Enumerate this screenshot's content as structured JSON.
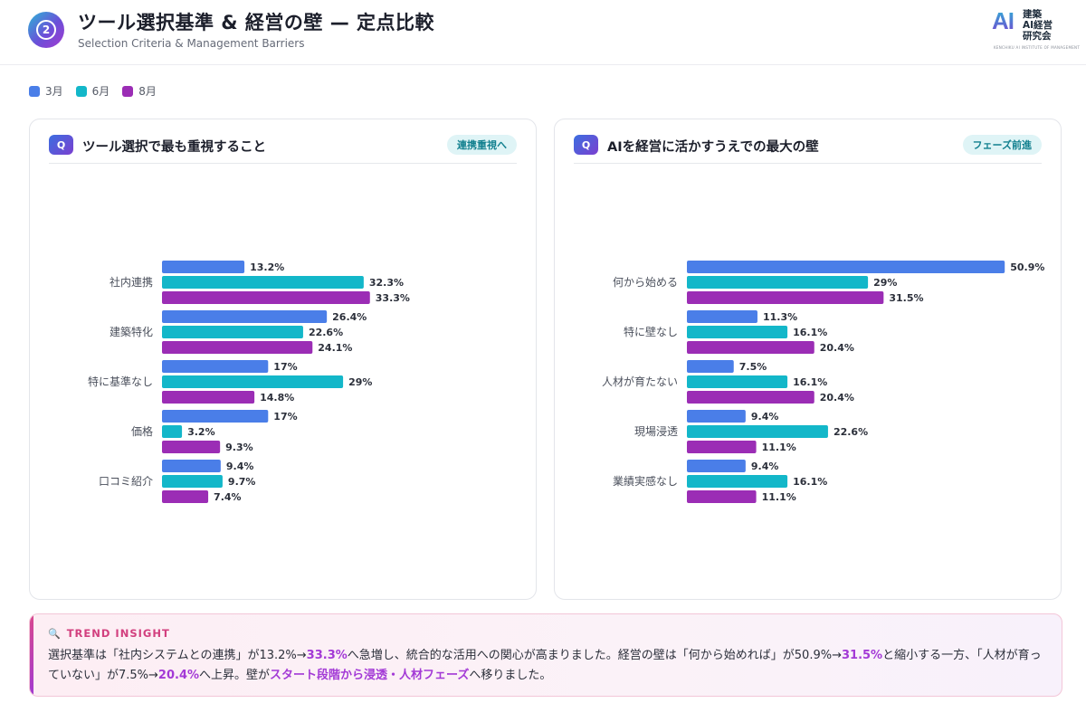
{
  "header": {
    "number": "2",
    "title": "ツール選択基準 & 経営の壁 — 定点比較",
    "subtitle": "Selection Criteria & Management Barriers",
    "logo_mark": "AI",
    "logo_text": "建築\nAI経営\n研究会",
    "logo_sub": "KENCHIKU AI INSTITUTE OF MANAGEMENT"
  },
  "legend": [
    {
      "label": "3月",
      "color": "#4a7ee8"
    },
    {
      "label": "6月",
      "color": "#13b7c9"
    },
    {
      "label": "8月",
      "color": "#9b2db5"
    }
  ],
  "cards": [
    {
      "q_icon": "Q",
      "title": "ツール選択で最も重視すること",
      "badge": "連携重視へ"
    },
    {
      "q_icon": "Q",
      "title": "AIを経営に活かすうえでの最大の壁",
      "badge": "フェーズ前進"
    }
  ],
  "chart_data": [
    {
      "type": "bar",
      "orientation": "horizontal",
      "title": "ツール選択で最も重視すること",
      "categories": [
        "社内連携",
        "建築特化",
        "特に基準なし",
        "価格",
        "口コミ紹介"
      ],
      "series": [
        {
          "name": "3月",
          "color": "#4a7ee8",
          "values": [
            13.2,
            26.4,
            17,
            17,
            9.4
          ],
          "labels": [
            "13.2%",
            "26.4%",
            "17%",
            "17%",
            "9.4%"
          ]
        },
        {
          "name": "6月",
          "color": "#13b7c9",
          "values": [
            32.3,
            22.6,
            29,
            3.2,
            9.7
          ],
          "labels": [
            "32.3%",
            "22.6%",
            "29%",
            "3.2%",
            "9.7%"
          ]
        },
        {
          "name": "8月",
          "color": "#9b2db5",
          "values": [
            33.3,
            24.1,
            14.8,
            9.3,
            7.4
          ],
          "labels": [
            "33.3%",
            "24.1%",
            "14.8%",
            "9.3%",
            "7.4%"
          ]
        }
      ],
      "xlim": [
        0,
        55
      ],
      "grid": false
    },
    {
      "type": "bar",
      "orientation": "horizontal",
      "title": "AIを経営に活かすうえでの最大の壁",
      "categories": [
        "何から始める",
        "特に壁なし",
        "人材が育たない",
        "現場浸透",
        "業績実感なし"
      ],
      "series": [
        {
          "name": "3月",
          "color": "#4a7ee8",
          "values": [
            50.9,
            11.3,
            7.5,
            9.4,
            9.4
          ],
          "labels": [
            "50.9%",
            "11.3%",
            "7.5%",
            "9.4%",
            "9.4%"
          ]
        },
        {
          "name": "6月",
          "color": "#13b7c9",
          "values": [
            29,
            16.1,
            16.1,
            22.6,
            16.1
          ],
          "labels": [
            "29%",
            "16.1%",
            "16.1%",
            "22.6%",
            "16.1%"
          ]
        },
        {
          "name": "8月",
          "color": "#9b2db5",
          "values": [
            31.5,
            20.4,
            20.4,
            11.1,
            11.1
          ],
          "labels": [
            "31.5%",
            "20.4%",
            "20.4%",
            "11.1%",
            "11.1%"
          ]
        }
      ],
      "xlim": [
        0,
        55
      ],
      "grid": false
    }
  ],
  "insight": {
    "icon": "magnifier-icon",
    "label": "TREND INSIGHT",
    "segments": [
      {
        "text": "選択基準は「社内システムとの連携」が13.2%→",
        "hl": false
      },
      {
        "text": "33.3%",
        "hl": true
      },
      {
        "text": "へ急増し、統合的な活用への関心が高まりました。経営の壁は「何から始めれば」が50.9%→",
        "hl": false
      },
      {
        "text": "31.5%",
        "hl": true
      },
      {
        "text": "と縮小する一方、「人材が育っていない」が7.5%→",
        "hl": false
      },
      {
        "text": "20.4%",
        "hl": true
      },
      {
        "text": "へ上昇。壁が",
        "hl": false
      },
      {
        "text": "スタート段階から浸透・人材フェーズ",
        "hl": true
      },
      {
        "text": "へ移りました。",
        "hl": false
      }
    ]
  }
}
